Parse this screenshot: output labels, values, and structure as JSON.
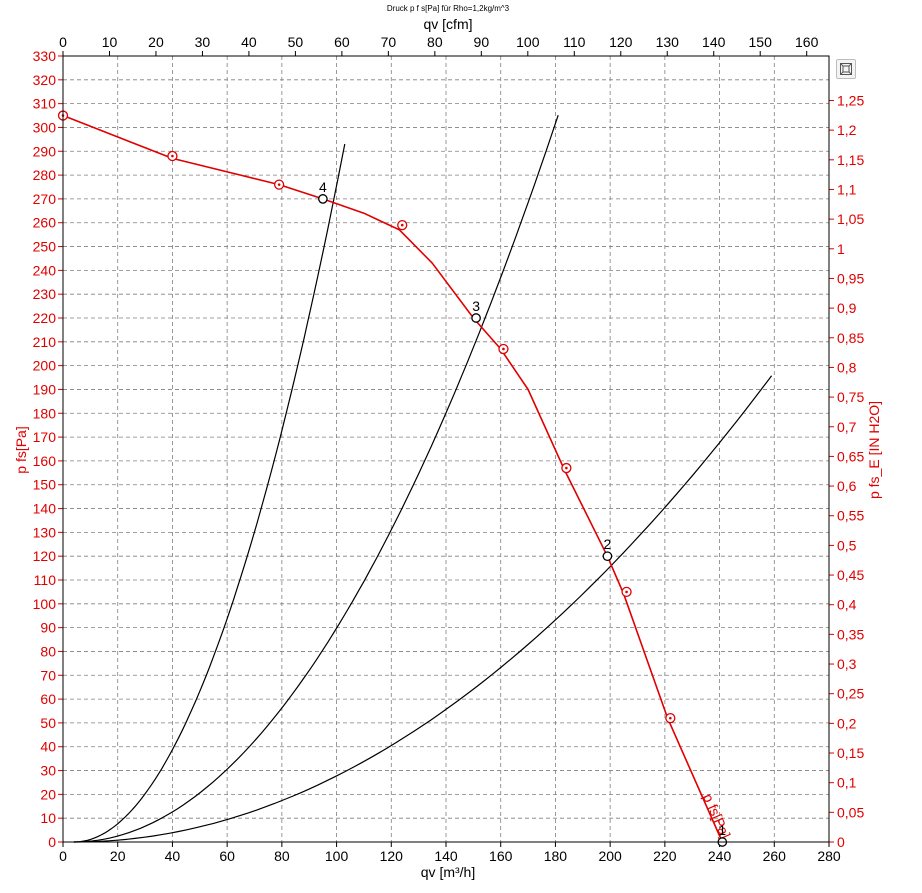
{
  "chart_data": {
    "type": "line",
    "title": "Druck p f s[Pa] für Rho=1,2kg/m^3",
    "xlabel": "qv [m³/h]",
    "x2label": "qv [cfm]",
    "ylabel": "p  fs[Pa]",
    "y2label": "p fs_E [IN H2O]",
    "xlim": [
      0,
      280
    ],
    "x2lim": [
      0,
      164.8
    ],
    "ylim": [
      0,
      330
    ],
    "y2lim": [
      0,
      1.325
    ],
    "x_ticks": [
      0,
      20,
      40,
      60,
      80,
      100,
      120,
      140,
      160,
      180,
      200,
      220,
      240,
      260,
      280
    ],
    "x2_ticks": [
      0,
      10,
      20,
      30,
      40,
      50,
      60,
      70,
      80,
      90,
      100,
      110,
      120,
      130,
      140,
      150,
      160
    ],
    "y_ticks": [
      0,
      10,
      20,
      30,
      40,
      50,
      60,
      70,
      80,
      90,
      100,
      110,
      120,
      130,
      140,
      150,
      160,
      170,
      180,
      190,
      200,
      210,
      220,
      230,
      240,
      250,
      260,
      270,
      280,
      290,
      300,
      310,
      320,
      330
    ],
    "y2_ticks": [
      "0",
      "0,05",
      "0,1",
      "0,15",
      "0,2",
      "0,25",
      "0,3",
      "0,35",
      "0,4",
      "0,45",
      "0,5",
      "0,55",
      "0,6",
      "0,65",
      "0,7",
      "0,75",
      "0,8",
      "0,85",
      "0,9",
      "0,95",
      "1",
      "1,05",
      "1,1",
      "1,15",
      "1,2",
      "1,25"
    ],
    "grid": true,
    "series": [
      {
        "name": "p  fs[Pa]",
        "color": "#e00000",
        "x": [
          0,
          40,
          79,
          95,
          110,
          123,
          135,
          150,
          160,
          170,
          183,
          199,
          205,
          221,
          241
        ],
        "y": [
          305,
          287,
          276,
          270,
          264,
          257,
          243,
          220,
          207,
          190,
          157,
          120,
          104,
          52,
          0
        ],
        "marked_points": [
          {
            "x": 0,
            "y": 305
          },
          {
            "x": 40,
            "y": 288
          },
          {
            "x": 79,
            "y": 276
          },
          {
            "x": 124,
            "y": 259
          },
          {
            "x": 161,
            "y": 207
          },
          {
            "x": 184,
            "y": 157
          },
          {
            "x": 206,
            "y": 105
          },
          {
            "x": 222,
            "y": 52
          }
        ],
        "curve_label": "p  fs[Pa]"
      }
    ],
    "system_curves": [
      {
        "color": "#000000",
        "k": 0.0299,
        "x_max": 103
      },
      {
        "color": "#000000",
        "k": 0.00974,
        "x_max": 181
      },
      {
        "color": "#000000",
        "k": 0.00301,
        "x_max": 259
      }
    ],
    "operating_points": [
      {
        "label": "1",
        "x": 241,
        "y": 0
      },
      {
        "label": "2",
        "x": 199,
        "y": 120
      },
      {
        "label": "3",
        "x": 151,
        "y": 220
      },
      {
        "label": "4",
        "x": 95,
        "y": 270
      }
    ]
  },
  "toolbar": {
    "zoom_icon": "zoom-fit-icon"
  }
}
